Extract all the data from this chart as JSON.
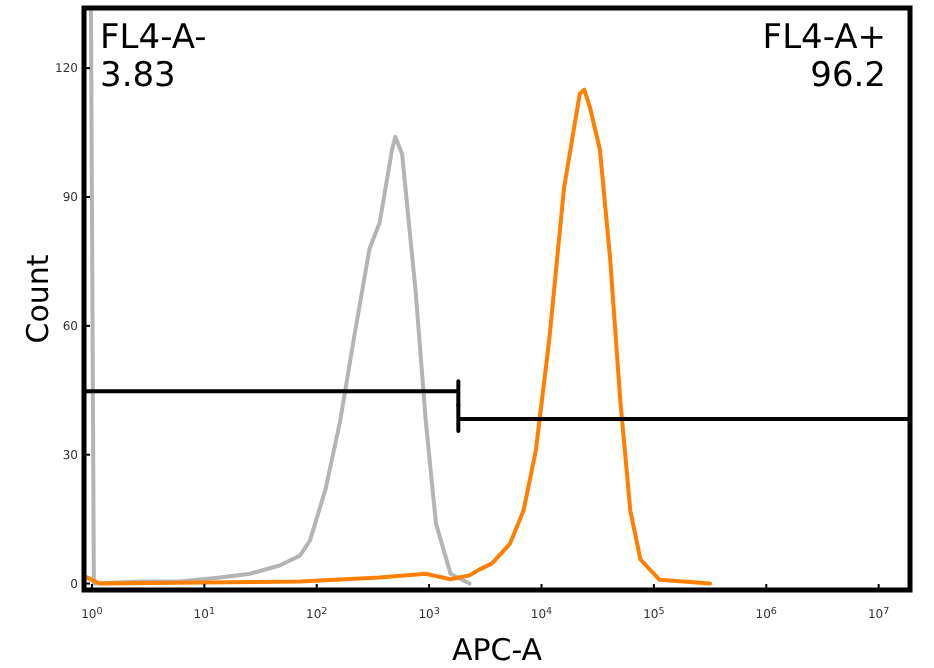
{
  "chart_data": {
    "type": "line",
    "xlabel": "APC-A",
    "ylabel": "Count",
    "log": "x",
    "grid": false,
    "line_style": "solid",
    "xlim": [
      0.85,
      19000000
    ],
    "ylim": [
      -1.5,
      134
    ],
    "xticks": [
      {
        "value": 1,
        "label": "10$^{0}$"
      },
      {
        "value": 10,
        "label": "10$^{1}$"
      },
      {
        "value": 100,
        "label": "10$^{2}$"
      },
      {
        "value": 1000,
        "label": "10$^{3}$"
      },
      {
        "value": 10000,
        "label": "10$^{4}$"
      },
      {
        "value": 100000,
        "label": "10$^{5}$"
      },
      {
        "value": 1000000,
        "label": "10$^{6}$"
      },
      {
        "value": 10000000,
        "label": "10$^{7}$"
      }
    ],
    "yticks": [
      0,
      30,
      60,
      90,
      120
    ],
    "series": [
      {
        "color": "#b4b4b4",
        "x": [
          0.98,
          1.04,
          2.7,
          6.0,
          13.8,
          25.7,
          46.8,
          70.8,
          87,
          120,
          162,
          214,
          295,
          363,
          468,
          501,
          575,
          759,
          933,
          1150,
          1550,
          2290
        ],
        "values": [
          134,
          0,
          0.5,
          0.5,
          1.4,
          2.3,
          4.2,
          6.5,
          10,
          22,
          38,
          57,
          78,
          84,
          101,
          104,
          100,
          68,
          38,
          14,
          2.3,
          0
        ]
      },
      {
        "color": "#ff8000",
        "x": [
          0.89,
          1.17,
          71,
          363,
          933,
          1550,
          2290,
          2820,
          3630,
          5250,
          6920,
          8910,
          11750,
          15850,
          21900,
          24000,
          26900,
          33100,
          40700,
          50100,
          61700,
          75900,
          112000,
          316000
        ],
        "values": [
          1.5,
          0,
          0.5,
          1.4,
          2.3,
          1,
          1.9,
          3.3,
          4.7,
          9.3,
          17,
          31,
          57,
          92,
          114,
          115,
          111,
          101,
          76,
          43,
          17,
          5.6,
          0.9,
          0
        ]
      },
      {
        "color": "#000000",
        "x": [
          0.85,
          1820,
          1820,
          1820
        ],
        "values": [
          44.8,
          44.8,
          47.1,
          41.5
        ]
      },
      {
        "color": "#000000",
        "x": [
          19000000,
          1820,
          1820,
          1820
        ],
        "values": [
          38.3,
          38.3,
          41.5,
          35.5
        ]
      }
    ],
    "annotations": [
      "FL4-A-\n3.83",
      "FL4-A+\n96.2"
    ]
  }
}
